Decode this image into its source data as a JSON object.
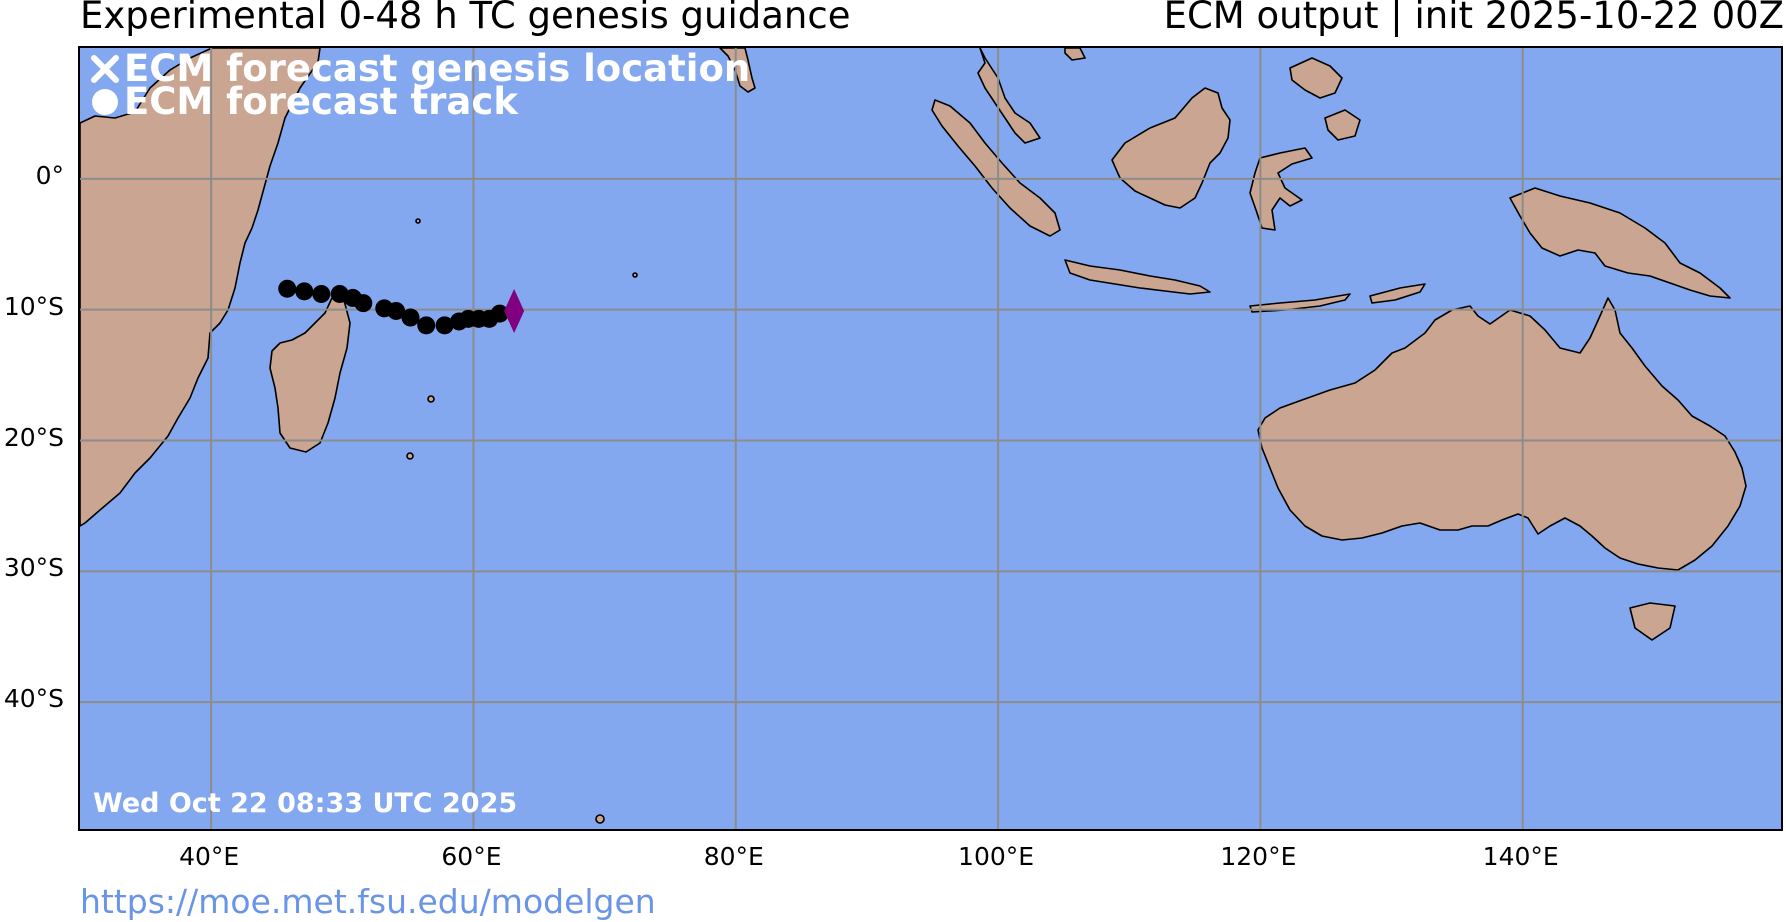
{
  "header": {
    "title_left": "Experimental 0-48 h TC genesis guidance",
    "title_right": "ECM output | init 2025-10-22 00Z"
  },
  "legend": {
    "genesis_label": "ECM forecast genesis location",
    "genesis_icon": "x-mark-icon",
    "track_label": "ECM forecast track",
    "track_icon": "filled-circle-icon"
  },
  "timestamp": "Wed Oct 22 08:33 UTC 2025",
  "source_url": "https://moe.met.fsu.edu/modelgen",
  "map": {
    "projection": "PlateCarree",
    "lon_range": [
      30,
      160
    ],
    "lat_range": [
      -50,
      10
    ],
    "ocean_color": "#84a8ef",
    "land_color": "#c9a592",
    "grid_color": "#8c8c8c",
    "lat_ticks": [
      {
        "lat": 0,
        "label": "0°"
      },
      {
        "lat": -10,
        "label": "10°S"
      },
      {
        "lat": -20,
        "label": "20°S"
      },
      {
        "lat": -30,
        "label": "30°S"
      },
      {
        "lat": -40,
        "label": "40°S"
      }
    ],
    "lon_ticks": [
      {
        "lon": 40,
        "label": "40°E"
      },
      {
        "lon": 60,
        "label": "60°E"
      },
      {
        "lon": 80,
        "label": "80°E"
      },
      {
        "lon": 100,
        "label": "100°E"
      },
      {
        "lon": 120,
        "label": "120°E"
      },
      {
        "lon": 140,
        "label": "140°E"
      }
    ],
    "track": {
      "color": "#000000",
      "points": [
        {
          "lon": 45.8,
          "lat": -8.4
        },
        {
          "lon": 47.1,
          "lat": -8.6
        },
        {
          "lon": 48.4,
          "lat": -8.8
        },
        {
          "lon": 49.8,
          "lat": -8.8
        },
        {
          "lon": 50.8,
          "lat": -9.1
        },
        {
          "lon": 51.6,
          "lat": -9.5
        },
        {
          "lon": 53.2,
          "lat": -9.9
        },
        {
          "lon": 54.1,
          "lat": -10.1
        },
        {
          "lon": 55.2,
          "lat": -10.6
        },
        {
          "lon": 56.4,
          "lat": -11.2
        },
        {
          "lon": 57.8,
          "lat": -11.2
        },
        {
          "lon": 58.9,
          "lat": -10.9
        },
        {
          "lon": 59.6,
          "lat": -10.7
        },
        {
          "lon": 60.4,
          "lat": -10.7
        },
        {
          "lon": 61.2,
          "lat": -10.7
        },
        {
          "lon": 62.0,
          "lat": -10.3
        }
      ]
    },
    "storm_marker": {
      "lon": 63.1,
      "lat": -10.1,
      "color": "#800080",
      "icon": "diamond-icon"
    }
  }
}
